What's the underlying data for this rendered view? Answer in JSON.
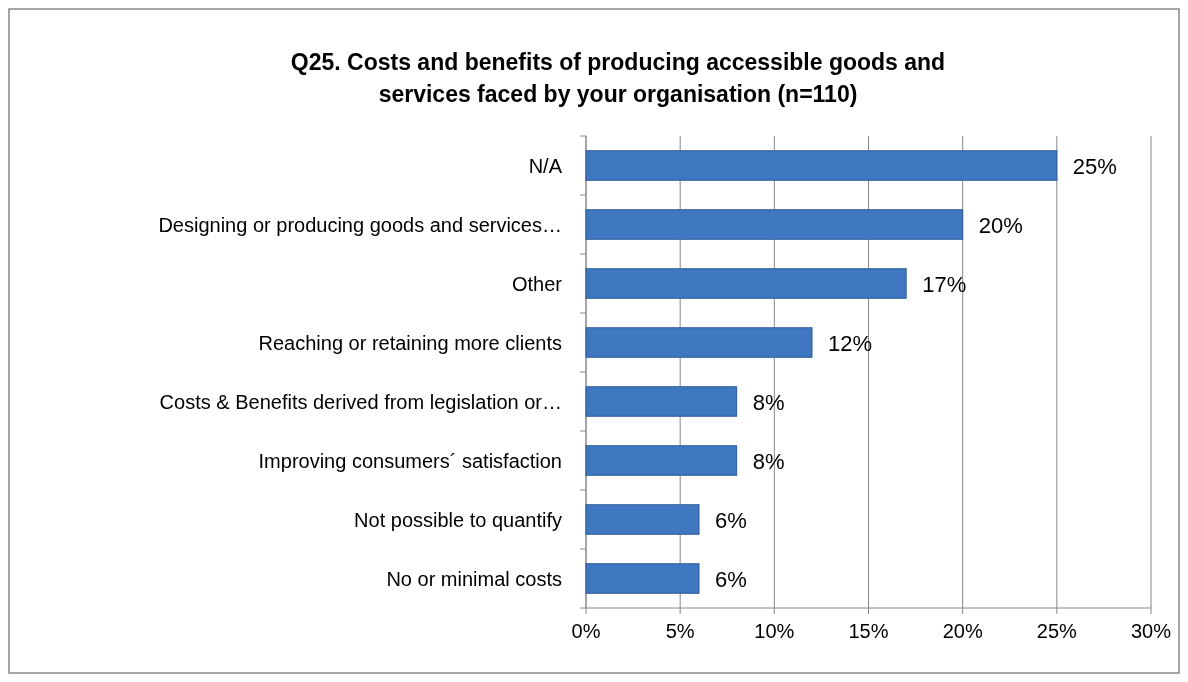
{
  "chart_data": {
    "type": "bar",
    "orientation": "horizontal",
    "title": "Q25. Costs and benefits of producing accessible goods and services faced by your organisation (n=110)",
    "categories": [
      "N/A",
      "Designing or producing goods and services…",
      "Other",
      "Reaching or retaining more clients",
      "Costs & Benefits derived from legislation or…",
      "Improving consumers´ satisfaction",
      "Not possible to quantify",
      "No or minimal costs"
    ],
    "values": [
      25,
      20,
      17,
      12,
      8,
      8,
      6,
      6
    ],
    "value_labels": [
      "25%",
      "20%",
      "17%",
      "12%",
      "8%",
      "8%",
      "6%",
      "6%"
    ],
    "color": "#3f78c0",
    "xlim": [
      0,
      30
    ],
    "xticks": [
      {
        "value": 0,
        "label": "0%"
      },
      {
        "value": 5,
        "label": "5%"
      },
      {
        "value": 10,
        "label": "10%"
      },
      {
        "value": 15,
        "label": "15%"
      },
      {
        "value": 20,
        "label": "20%"
      },
      {
        "value": 25,
        "label": "25%"
      },
      {
        "value": 30,
        "label": "30%"
      }
    ],
    "grid": "x"
  }
}
